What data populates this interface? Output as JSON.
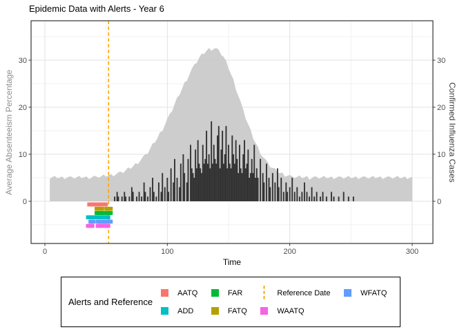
{
  "title": "Epidemic Data with Alerts - Year 6",
  "axes": {
    "x": {
      "title": "Time",
      "tick_values": [
        0,
        100,
        200,
        300
      ]
    },
    "y_left": {
      "title": "Average Absenteeism Percentage",
      "tick_values": [
        0,
        10,
        20,
        30
      ]
    },
    "y_right": {
      "title": "Confirmed Influenza Cases",
      "tick_values": [
        0,
        10,
        20,
        30
      ]
    }
  },
  "legend": {
    "title": "Alerts and Reference",
    "items": [
      {
        "label": "AATQ",
        "color": "#F8766D",
        "type": "square"
      },
      {
        "label": "ADD",
        "color": "#00BFC4",
        "type": "square"
      },
      {
        "label": "FAR",
        "color": "#00BA38",
        "type": "square"
      },
      {
        "label": "FATQ",
        "color": "#B79F00",
        "type": "square"
      },
      {
        "label": "Reference Date",
        "color": "#FFA500",
        "type": "dashed-line"
      },
      {
        "label": "WAATQ",
        "color": "#F564E3",
        "type": "square"
      },
      {
        "label": "WFATQ",
        "color": "#619CFF",
        "type": "square"
      }
    ]
  },
  "chart_data": {
    "type": "area+bar",
    "title": "Epidemic Data with Alerts - Year 6",
    "xlabel": "Time",
    "ylabel_left": "Average Absenteeism Percentage",
    "ylabel_right": "Confirmed Influenza Cases",
    "x_range": [
      0,
      300
    ],
    "y_range_shown": [
      -9,
      38
    ],
    "grid": {
      "x_major": [
        0,
        100,
        200,
        300
      ],
      "x_minor": [
        50,
        150,
        250
      ],
      "y_major": [
        0,
        10,
        20,
        30
      ],
      "y_minor": [
        -5,
        5,
        15,
        25,
        35
      ]
    },
    "reference_line": {
      "time": 52,
      "style": "dashed",
      "color": "#FFA500",
      "label": "Reference Date"
    },
    "absenteeism": {
      "type": "area",
      "color": "#C9C9C9",
      "t_start": 4,
      "t_step": 2,
      "values": [
        4.8,
        5.1,
        5.4,
        4.9,
        5.0,
        5.3,
        4.7,
        5.0,
        5.3,
        5.2,
        4.8,
        5.1,
        5.4,
        4.9,
        5.1,
        5.3,
        4.7,
        5.0,
        5.4,
        5.3,
        5.0,
        5.3,
        5.7,
        5.2,
        5.5,
        5.8,
        5.3,
        5.7,
        6.2,
        6.3,
        6.0,
        6.6,
        7.2,
        6.9,
        7.4,
        8.1,
        7.9,
        8.6,
        9.5,
        10.0,
        10.1,
        11.2,
        12.3,
        12.5,
        13.5,
        14.7,
        14.9,
        16.2,
        17.6,
        18.6,
        19.2,
        20.7,
        22.1,
        22.6,
        23.9,
        25.3,
        25.6,
        26.9,
        28.2,
        29.1,
        29.4,
        30.5,
        31.4,
        31.3,
        32.0,
        32.6,
        32.0,
        32.4,
        32.6,
        32.2,
        31.1,
        30.7,
        29.9,
        28.2,
        27.0,
        25.9,
        23.7,
        22.4,
        21.1,
        19.5,
        17.5,
        16.4,
        15.3,
        13.4,
        12.4,
        11.6,
        10.0,
        9.4,
        9.0,
        8.3,
        7.2,
        7.1,
        7.0,
        6.1,
        6.0,
        6.1,
        5.2,
        5.4,
        5.6,
        5.3,
        4.9,
        5.2,
        5.5,
        4.9,
        5.1,
        5.4,
        4.6,
        4.9,
        5.3,
        5.2,
        4.8,
        5.1,
        5.4,
        4.9,
        5.0,
        5.3,
        4.7,
        5.0,
        5.3,
        5.2,
        4.8,
        5.1,
        5.4,
        4.9,
        5.0,
        5.3,
        4.7,
        5.0,
        5.3,
        5.2,
        4.8,
        5.1,
        5.4,
        4.9,
        5.1,
        5.3,
        4.7,
        5.0,
        5.3,
        5.2,
        4.8,
        5.1,
        5.4,
        4.9,
        5.0,
        5.3,
        4.7,
        5.0,
        5.2
      ]
    },
    "influenza": {
      "type": "bar",
      "color": "#333333",
      "points": [
        [
          57,
          1
        ],
        [
          59,
          2
        ],
        [
          60,
          1
        ],
        [
          63,
          1
        ],
        [
          65,
          2
        ],
        [
          66,
          1
        ],
        [
          69,
          1
        ],
        [
          71,
          3
        ],
        [
          72,
          2
        ],
        [
          75,
          1
        ],
        [
          77,
          2
        ],
        [
          79,
          1
        ],
        [
          81,
          4
        ],
        [
          82,
          2
        ],
        [
          84,
          1
        ],
        [
          86,
          3
        ],
        [
          88,
          5
        ],
        [
          89,
          2
        ],
        [
          91,
          1
        ],
        [
          93,
          4
        ],
        [
          95,
          2
        ],
        [
          96,
          6
        ],
        [
          98,
          3
        ],
        [
          100,
          5
        ],
        [
          101,
          2
        ],
        [
          103,
          7
        ],
        [
          105,
          4
        ],
        [
          106,
          9
        ],
        [
          108,
          5
        ],
        [
          110,
          3
        ],
        [
          111,
          8
        ],
        [
          113,
          10
        ],
        [
          114,
          6
        ],
        [
          116,
          4
        ],
        [
          117,
          9
        ],
        [
          119,
          12
        ],
        [
          120,
          7
        ],
        [
          121,
          6
        ],
        [
          122,
          5
        ],
        [
          123,
          11
        ],
        [
          124,
          7
        ],
        [
          125,
          13
        ],
        [
          126,
          8
        ],
        [
          127,
          7
        ],
        [
          128,
          6
        ],
        [
          129,
          12
        ],
        [
          130,
          8
        ],
        [
          131,
          9
        ],
        [
          132,
          15
        ],
        [
          133,
          8
        ],
        [
          134,
          10
        ],
        [
          135,
          7
        ],
        [
          136,
          17
        ],
        [
          137,
          8
        ],
        [
          138,
          12
        ],
        [
          139,
          9
        ],
        [
          140,
          8
        ],
        [
          141,
          14
        ],
        [
          142,
          16
        ],
        [
          143,
          7
        ],
        [
          144,
          11
        ],
        [
          145,
          15
        ],
        [
          146,
          8
        ],
        [
          147,
          10
        ],
        [
          148,
          16
        ],
        [
          149,
          7
        ],
        [
          150,
          12
        ],
        [
          151,
          8
        ],
        [
          152,
          7
        ],
        [
          153,
          14
        ],
        [
          154,
          10
        ],
        [
          155,
          8
        ],
        [
          156,
          13
        ],
        [
          157,
          9
        ],
        [
          158,
          6
        ],
        [
          159,
          12
        ],
        [
          160,
          7
        ],
        [
          161,
          6
        ],
        [
          162,
          10
        ],
        [
          163,
          13
        ],
        [
          164,
          7
        ],
        [
          165,
          8
        ],
        [
          166,
          11
        ],
        [
          167,
          5
        ],
        [
          168,
          6
        ],
        [
          169,
          9
        ],
        [
          170,
          6
        ],
        [
          171,
          12
        ],
        [
          172,
          5
        ],
        [
          173,
          7
        ],
        [
          174,
          5
        ],
        [
          176,
          9
        ],
        [
          178,
          6
        ],
        [
          179,
          4
        ],
        [
          181,
          8
        ],
        [
          183,
          5
        ],
        [
          184,
          3
        ],
        [
          186,
          6
        ],
        [
          188,
          4
        ],
        [
          190,
          7
        ],
        [
          191,
          3
        ],
        [
          193,
          5
        ],
        [
          195,
          2
        ],
        [
          197,
          4
        ],
        [
          198,
          2
        ],
        [
          200,
          3
        ],
        [
          202,
          5
        ],
        [
          204,
          2
        ],
        [
          206,
          3
        ],
        [
          208,
          1
        ],
        [
          210,
          2
        ],
        [
          212,
          4
        ],
        [
          214,
          2
        ],
        [
          216,
          1
        ],
        [
          218,
          3
        ],
        [
          220,
          1
        ],
        [
          222,
          2
        ],
        [
          225,
          1
        ],
        [
          227,
          2
        ],
        [
          230,
          1
        ],
        [
          234,
          2
        ],
        [
          236,
          1
        ],
        [
          240,
          1
        ],
        [
          244,
          2
        ],
        [
          248,
          1
        ],
        [
          252,
          1
        ]
      ]
    },
    "alerts": [
      {
        "name": "AATQ",
        "color": "#F8766D",
        "row": 0,
        "times": [
          36,
          37,
          38,
          39,
          40,
          41,
          42,
          43,
          44,
          45,
          46,
          47,
          48,
          49,
          50
        ]
      },
      {
        "name": "FATQ",
        "color": "#B79F00",
        "row": 1,
        "times": [
          42,
          43,
          45,
          46,
          47,
          50,
          51,
          52,
          53,
          54
        ]
      },
      {
        "name": "FAR",
        "color": "#00BA38",
        "row": 2,
        "times": [
          42,
          43,
          44,
          45,
          46,
          47,
          48,
          50,
          51,
          52,
          53,
          54
        ]
      },
      {
        "name": "ADD",
        "color": "#00BFC4",
        "row": 3,
        "times": [
          35,
          36,
          37,
          38,
          40,
          41,
          42,
          43,
          44,
          45,
          46,
          47,
          48,
          49,
          50,
          51,
          52
        ]
      },
      {
        "name": "WFATQ",
        "color": "#619CFF",
        "row": 4,
        "times": [
          37,
          38,
          39,
          40,
          43,
          44,
          45,
          46,
          47,
          48,
          49,
          50,
          51,
          52,
          53,
          54
        ]
      },
      {
        "name": "WAATQ",
        "color": "#F564E3",
        "row": 5,
        "times": [
          35,
          36,
          37,
          38,
          39,
          43,
          44,
          45,
          46,
          47,
          48,
          49,
          50,
          51,
          52
        ]
      }
    ]
  }
}
